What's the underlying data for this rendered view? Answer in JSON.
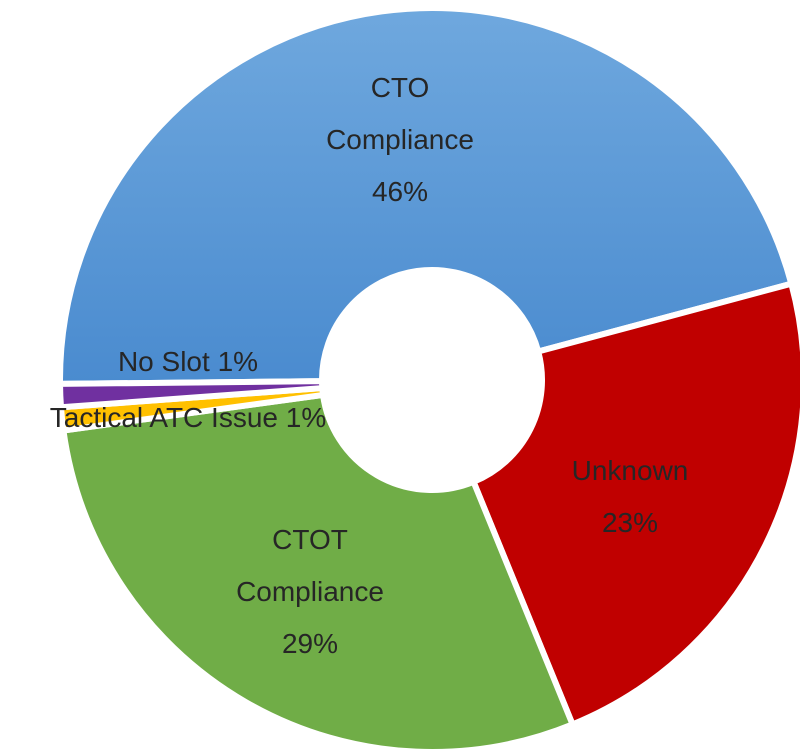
{
  "chart_data": {
    "type": "donut",
    "categories": [
      "CTO Compliance",
      "Unknown",
      "CTOT Compliance",
      "Tactical ATC Issue",
      "No Slot"
    ],
    "values": [
      46,
      23,
      29,
      1,
      1
    ],
    "value_labels": [
      "46%",
      "23%",
      "29%",
      "1%",
      "1%"
    ],
    "colors": [
      "#5b9bd5",
      "#c00000",
      "#70ad47",
      "#ffc000",
      "#7030a0"
    ]
  }
}
